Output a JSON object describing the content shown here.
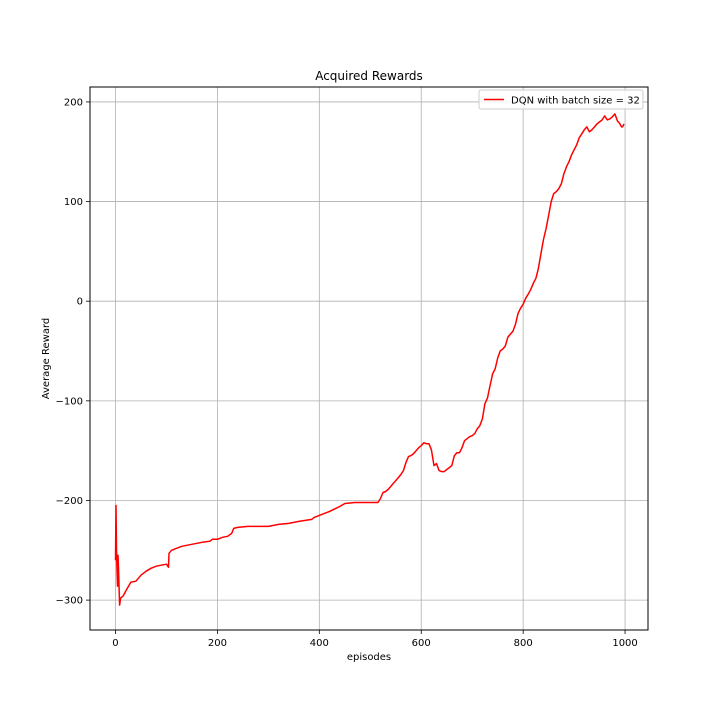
{
  "chart_data": {
    "type": "line",
    "title": "Acquired Rewards",
    "xlabel": "episodes",
    "ylabel": "Average Reward",
    "xlim": [
      -50,
      1045
    ],
    "ylim": [
      -330,
      215
    ],
    "xticks": [
      0,
      200,
      400,
      600,
      800,
      1000
    ],
    "yticks": [
      -300,
      -200,
      -100,
      0,
      100,
      200
    ],
    "grid": true,
    "legend_position": "top-right",
    "series": [
      {
        "name": "DQN with batch size = 32",
        "color": "#ff0000",
        "x": [
          0,
          1,
          2,
          3,
          4,
          5,
          6,
          7,
          8,
          10,
          15,
          20,
          30,
          40,
          50,
          60,
          70,
          80,
          90,
          100,
          104,
          105,
          110,
          120,
          130,
          150,
          170,
          185,
          190,
          200,
          210,
          220,
          228,
          232,
          240,
          260,
          280,
          300,
          310,
          320,
          340,
          360,
          385,
          390,
          400,
          420,
          440,
          450,
          470,
          500,
          515,
          520,
          525,
          530,
          535,
          540,
          545,
          550,
          555,
          560,
          565,
          570,
          575,
          580,
          585,
          590,
          595,
          600,
          605,
          610,
          615,
          620,
          625,
          630,
          635,
          640,
          645,
          650,
          655,
          660,
          665,
          670,
          675,
          680,
          685,
          690,
          695,
          700,
          705,
          710,
          715,
          720,
          725,
          730,
          735,
          740,
          745,
          750,
          755,
          760,
          765,
          770,
          775,
          780,
          785,
          790,
          795,
          800,
          805,
          810,
          815,
          820,
          825,
          830,
          835,
          840,
          845,
          850,
          855,
          860,
          865,
          870,
          875,
          880,
          885,
          890,
          895,
          900,
          905,
          910,
          915,
          920,
          925,
          930,
          935,
          940,
          945,
          950,
          955,
          960,
          965,
          970,
          975,
          980,
          985,
          990,
          993,
          995,
          998
        ],
        "y": [
          -260,
          -205,
          -250,
          -270,
          -286,
          -255,
          -268,
          -285,
          -305,
          -298,
          -296,
          -291,
          -282,
          -281,
          -275,
          -271,
          -268,
          -266,
          -265,
          -264,
          -267,
          -253,
          -250,
          -248,
          -246,
          -244,
          -242,
          -241,
          -239,
          -239,
          -237,
          -236,
          -233,
          -228,
          -227,
          -226,
          -226,
          -226,
          -225,
          -224,
          -223,
          -221,
          -219,
          -217,
          -215,
          -211,
          -206,
          -203,
          -202,
          -202,
          -202,
          -198,
          -192,
          -191,
          -189,
          -186,
          -183,
          -180,
          -177,
          -174,
          -170,
          -162,
          -156,
          -155,
          -153,
          -150,
          -147,
          -145,
          -142,
          -143,
          -143,
          -149,
          -165,
          -163,
          -170,
          -171,
          -171,
          -169,
          -167,
          -165,
          -155,
          -152,
          -152,
          -147,
          -140,
          -138,
          -136,
          -135,
          -133,
          -128,
          -125,
          -118,
          -103,
          -97,
          -85,
          -73,
          -68,
          -57,
          -50,
          -48,
          -45,
          -36,
          -33,
          -30,
          -23,
          -12,
          -7,
          -3,
          3,
          7,
          12,
          18,
          23,
          33,
          48,
          62,
          73,
          86,
          100,
          108,
          110,
          113,
          118,
          128,
          135,
          140,
          147,
          152,
          157,
          164,
          168,
          172,
          175,
          170,
          172,
          175,
          178,
          180,
          182,
          186,
          182,
          183,
          185,
          188,
          181,
          178,
          175,
          175,
          178
        ]
      }
    ]
  }
}
